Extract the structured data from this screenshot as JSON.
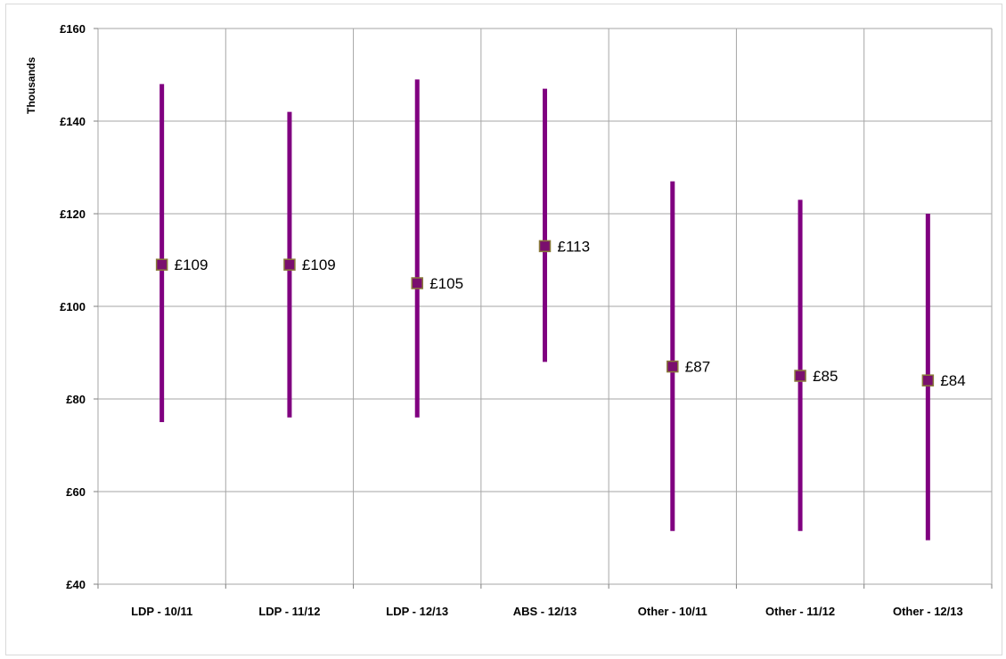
{
  "chart_data": {
    "type": "error-bar",
    "title": "",
    "xlabel": "",
    "ylabel": "Thousands",
    "ylim": [
      40,
      160
    ],
    "y_ticks": [
      "£40",
      "£60",
      "£80",
      "£100",
      "£120",
      "£140",
      "£160"
    ],
    "y_tick_values": [
      40,
      60,
      80,
      100,
      120,
      140,
      160
    ],
    "grid": true,
    "categories": [
      "LDP - 10/11",
      "LDP - 11/12",
      "LDP - 12/13",
      "ABS - 12/13",
      "Other - 10/11",
      "Other - 11/12",
      "Other - 12/13"
    ],
    "series": [
      {
        "values": [
          109,
          109,
          105,
          113,
          87,
          85,
          84
        ],
        "low": [
          75,
          76,
          76,
          88,
          51.5,
          51.5,
          49.5
        ],
        "high": [
          148,
          142,
          149,
          147,
          127,
          123,
          120
        ],
        "data_labels": [
          "£109",
          "£109",
          "£105",
          "£113",
          "£87",
          "£85",
          "£84"
        ]
      }
    ],
    "colors": {
      "range_bar": "#800080",
      "marker_fill": "#7a0f6e",
      "marker_border": "#8a7a3a",
      "gridline": "#a6a6a6"
    }
  }
}
